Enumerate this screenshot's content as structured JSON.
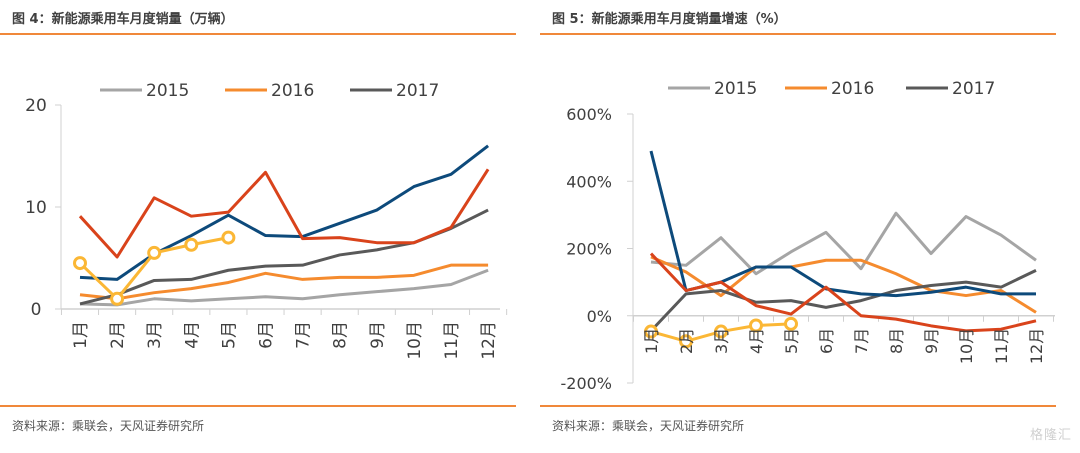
{
  "chart_data": [
    {
      "type": "line",
      "title": "图 4：新能源乘用车月度销量（万辆）",
      "xlabel": "",
      "ylabel": "",
      "ylim": [
        0,
        20
      ],
      "yticks": [
        0,
        10,
        20
      ],
      "ytick_labels": [
        "0",
        "10",
        "20"
      ],
      "categories": [
        "1月",
        "2月",
        "3月",
        "4月",
        "5月",
        "6月",
        "7月",
        "8月",
        "9月",
        "10月",
        "11月",
        "12月"
      ],
      "legend": {
        "position": "top",
        "entries": [
          "2015",
          "2016",
          "2017"
        ]
      },
      "grid": false,
      "series": [
        {
          "name": "2015",
          "color": "#a5a5a5",
          "in_legend": true,
          "markers": false,
          "values": [
            0.5,
            0.4,
            1.0,
            0.8,
            1.0,
            1.2,
            1.0,
            1.4,
            1.7,
            2.0,
            2.4,
            3.8
          ]
        },
        {
          "name": "2016",
          "color": "#f58b2e",
          "in_legend": true,
          "markers": false,
          "values": [
            1.4,
            1.0,
            1.6,
            2.0,
            2.6,
            3.5,
            2.9,
            3.1,
            3.1,
            3.3,
            4.3,
            4.3
          ]
        },
        {
          "name": "2017",
          "color": "#595959",
          "in_legend": true,
          "markers": false,
          "values": [
            0.5,
            1.4,
            2.8,
            2.9,
            3.8,
            4.2,
            4.3,
            5.3,
            5.8,
            6.5,
            7.9,
            9.7
          ]
        },
        {
          "name": "series-blue",
          "color": "#0d4a7b",
          "in_legend": false,
          "markers": false,
          "values": [
            3.1,
            2.9,
            5.4,
            7.2,
            9.2,
            7.2,
            7.1,
            8.4,
            9.7,
            12.0,
            13.2,
            16.0
          ]
        },
        {
          "name": "series-red",
          "color": "#d9431b",
          "in_legend": false,
          "markers": false,
          "values": [
            9.1,
            5.1,
            10.9,
            9.1,
            9.5,
            13.4,
            6.9,
            7.0,
            6.5,
            6.5,
            8.0,
            13.7
          ]
        },
        {
          "name": "series-yellow",
          "color": "#fbb735",
          "in_legend": false,
          "markers": true,
          "values": [
            4.5,
            1.0,
            5.5,
            6.3,
            7.0
          ]
        }
      ],
      "source": "资料来源：乘联会，天风证券研究所"
    },
    {
      "type": "line",
      "title": "图 5：新能源乘用车月度销量增速（%）",
      "xlabel": "",
      "ylabel": "",
      "ylim": [
        -200,
        600
      ],
      "yticks": [
        -200,
        0,
        200,
        400,
        600
      ],
      "ytick_labels": [
        "-200%",
        "0%",
        "200%",
        "400%",
        "600%"
      ],
      "categories": [
        "1月",
        "2月",
        "3月",
        "4月",
        "5月",
        "6月",
        "7月",
        "8月",
        "9月",
        "10月",
        "11月",
        "12月"
      ],
      "legend": {
        "position": "top",
        "entries": [
          "2015",
          "2016",
          "2017"
        ]
      },
      "grid": false,
      "series": [
        {
          "name": "2015",
          "color": "#a5a5a5",
          "in_legend": true,
          "markers": false,
          "values": [
            160,
            150,
            232,
            125,
            190,
            248,
            140,
            305,
            185,
            295,
            240,
            165
          ]
        },
        {
          "name": "2016",
          "color": "#f58b2e",
          "in_legend": true,
          "markers": false,
          "values": [
            175,
            130,
            60,
            145,
            145,
            165,
            165,
            125,
            75,
            60,
            75,
            10
          ]
        },
        {
          "name": "2017",
          "color": "#595959",
          "in_legend": true,
          "markers": false,
          "values": [
            -45,
            65,
            75,
            40,
            45,
            25,
            45,
            75,
            90,
            100,
            85,
            135
          ]
        },
        {
          "name": "series-blue",
          "color": "#0d4a7b",
          "in_legend": false,
          "markers": false,
          "values": [
            490,
            75,
            100,
            145,
            145,
            80,
            65,
            60,
            70,
            85,
            65,
            65
          ]
        },
        {
          "name": "series-red",
          "color": "#d9431b",
          "in_legend": false,
          "markers": false,
          "values": [
            185,
            75,
            100,
            30,
            5,
            85,
            0,
            -10,
            -30,
            -45,
            -40,
            -15
          ]
        },
        {
          "name": "series-yellow",
          "color": "#fbb735",
          "in_legend": false,
          "markers": true,
          "values": [
            -47,
            -76,
            -47,
            -29,
            -24
          ]
        }
      ],
      "source": "资料来源：乘联会，天风证券研究所"
    }
  ],
  "accent_color": "#f0883a",
  "watermark": "格隆汇"
}
